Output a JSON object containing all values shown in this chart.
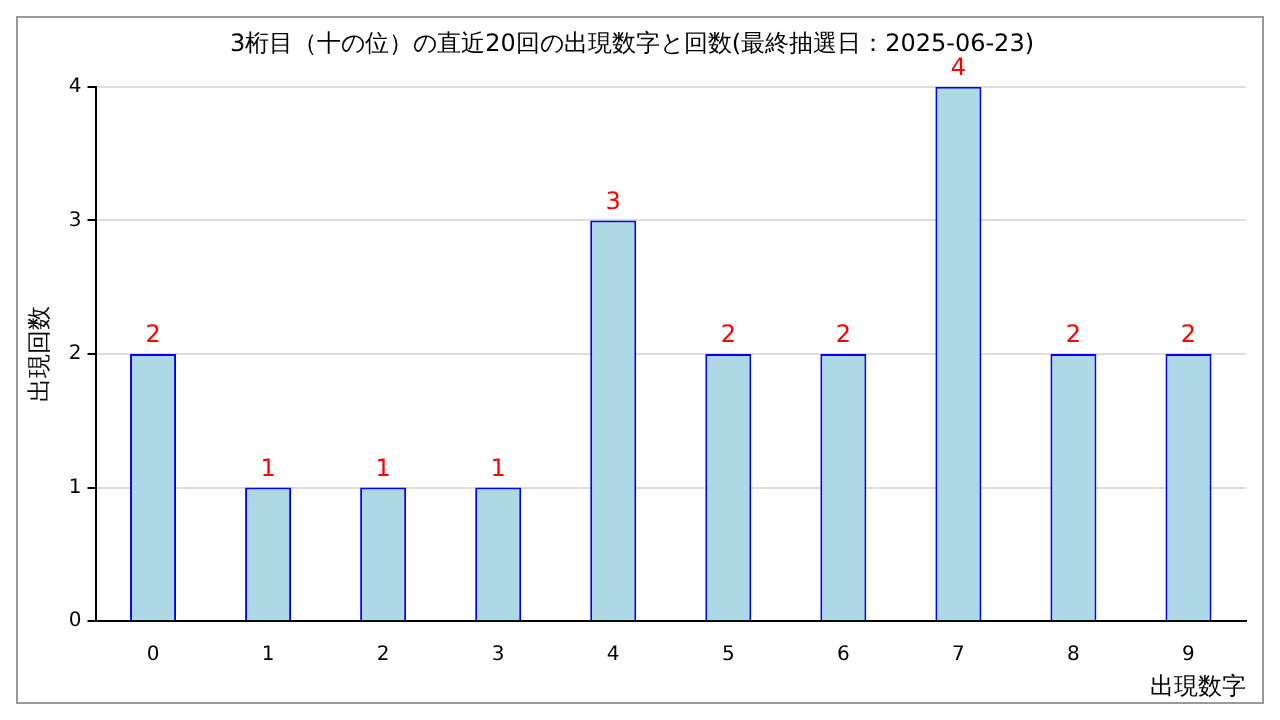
{
  "chart_data": {
    "type": "bar",
    "title": "3桁目（十の位）の直近20回の出現数字と回数(最終抽選日：2025-06-23)",
    "xlabel": "出現数字",
    "ylabel": "出現回数",
    "categories": [
      "0",
      "1",
      "2",
      "3",
      "4",
      "5",
      "6",
      "7",
      "8",
      "9"
    ],
    "values": [
      2,
      1,
      1,
      1,
      3,
      2,
      2,
      4,
      2,
      2
    ],
    "color": "#add8e6",
    "ylim": [
      0,
      4
    ],
    "yticks": [
      0,
      1,
      2,
      3,
      4
    ],
    "grid": "y",
    "data_labels": true
  }
}
